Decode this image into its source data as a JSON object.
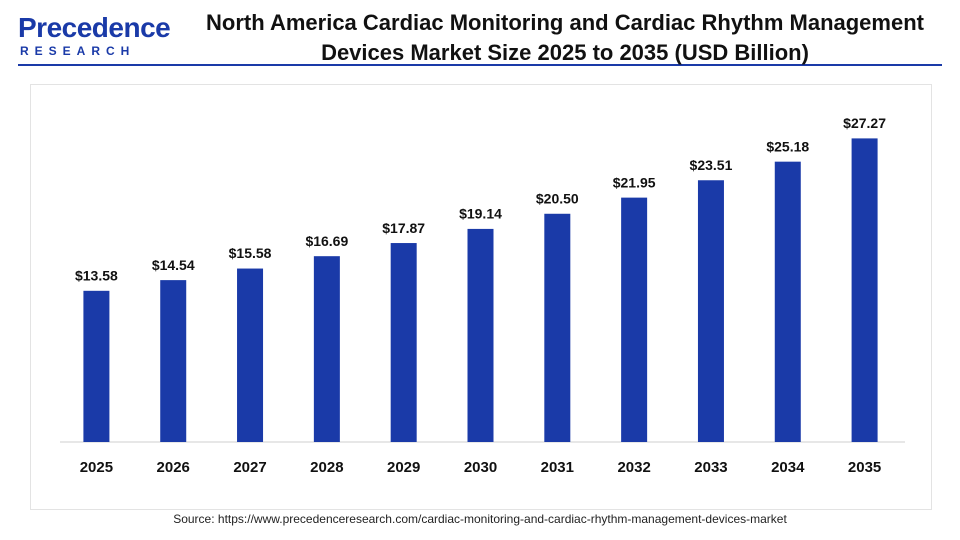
{
  "logo": {
    "name": "Precedence",
    "tagline": "RESEARCH"
  },
  "chart_data": {
    "type": "bar",
    "title": "North America Cardiac Monitoring and Cardiac Rhythm Management Devices Market Size 2025 to 2035 (USD Billion)",
    "categories": [
      "2025",
      "2026",
      "2027",
      "2028",
      "2029",
      "2030",
      "2031",
      "2032",
      "2033",
      "2034",
      "2035"
    ],
    "values": [
      13.58,
      14.54,
      15.58,
      16.69,
      17.87,
      19.14,
      20.5,
      21.95,
      23.51,
      25.18,
      27.27
    ],
    "value_labels": [
      "$13.58",
      "$14.54",
      "$15.58",
      "$16.69",
      "$17.87",
      "$19.14",
      "$20.50",
      "$21.95",
      "$23.51",
      "$25.18",
      "$27.27"
    ],
    "color": "#1a3aa8",
    "ylim": [
      0,
      30
    ],
    "source": "Source: https://www.precedenceresearch.com/cardiac-monitoring-and-cardiac-rhythm-management-devices-market"
  }
}
